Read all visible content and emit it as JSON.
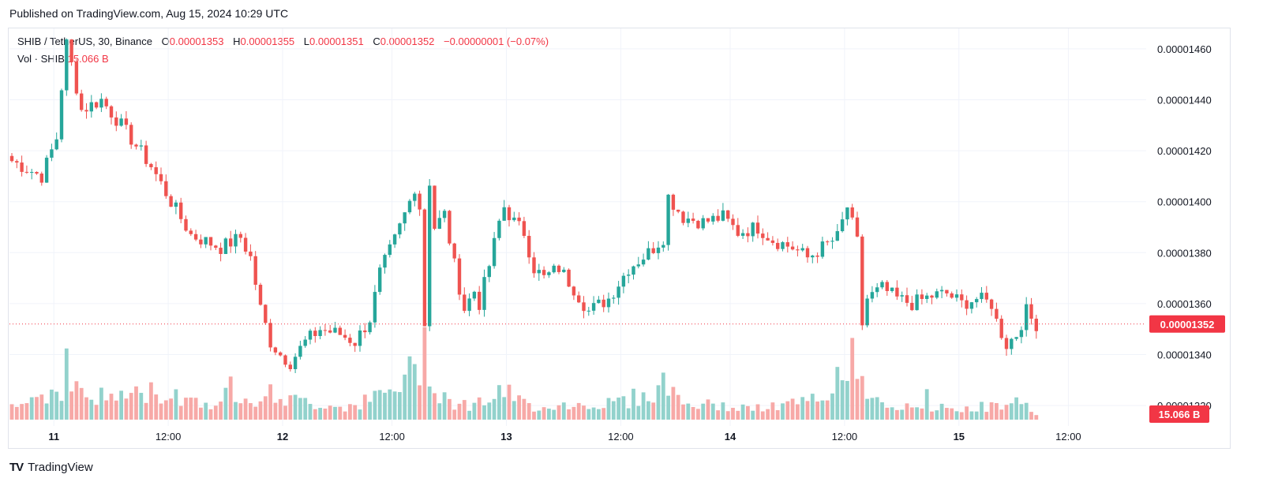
{
  "header": {
    "published": "Published on TradingView.com, Aug 15, 2024 10:29 UTC"
  },
  "legend": {
    "symbol": "SHIB / TetherUS, 30, Binance",
    "o_label": "O",
    "o_value": "0.00001353",
    "h_label": "H",
    "h_value": "0.00001355",
    "l_label": "L",
    "l_value": "0.00001351",
    "c_label": "C",
    "c_value": "0.00001352",
    "change": "−0.00000001 (−0.07%)",
    "vol_label": "Vol · SHIB",
    "vol_value": "15.066 B"
  },
  "footer": {
    "brand": "TradingView",
    "logo": "TV"
  },
  "colors": {
    "up": "#26a69a",
    "down": "#ef5350",
    "up_vol": "#92d2cc",
    "down_vol": "#f7a9a7",
    "grid": "#f0f3fa",
    "price_line": "#f23645"
  },
  "chart_data": {
    "type": "candlestick",
    "title": "SHIB / TetherUS, 30, Binance",
    "interval": "30",
    "grid": true,
    "y_axis": {
      "ticks": [
        "0.00001460",
        "0.00001440",
        "0.00001420",
        "0.00001400",
        "0.00001380",
        "0.00001360",
        "0.00001340",
        "0.00001320"
      ],
      "ylim": [
        1.312e-05,
        1.468e-05
      ],
      "last_price_label": "0.00001352",
      "last_price": 1.352e-05,
      "last_volume_label": "15.066 B"
    },
    "x_axis": {
      "ticks": [
        "11",
        "12:00",
        "12",
        "12:00",
        "13",
        "12:00",
        "14",
        "12:00",
        "15",
        "12:00"
      ]
    },
    "close_path": [
      [
        0,
        1416
      ],
      [
        6,
        1410
      ],
      [
        9,
        1425
      ],
      [
        10,
        1445
      ],
      [
        11,
        1462
      ],
      [
        12,
        1454
      ],
      [
        14,
        1436
      ],
      [
        18,
        1440
      ],
      [
        22,
        1430
      ],
      [
        28,
        1414
      ],
      [
        32,
        1400
      ],
      [
        36,
        1387
      ],
      [
        42,
        1382
      ],
      [
        46,
        1386
      ],
      [
        48,
        1378
      ],
      [
        50,
        1358
      ],
      [
        52,
        1345
      ],
      [
        54,
        1340
      ],
      [
        56,
        1337
      ],
      [
        59,
        1345
      ],
      [
        62,
        1350
      ],
      [
        66,
        1348
      ],
      [
        69,
        1345
      ],
      [
        72,
        1354
      ],
      [
        74,
        1372
      ],
      [
        77,
        1385
      ],
      [
        80,
        1400
      ],
      [
        81,
        1406
      ],
      [
        82,
        1398
      ],
      [
        83,
        1352
      ],
      [
        84,
        1408
      ],
      [
        85,
        1390
      ],
      [
        87,
        1395
      ],
      [
        89,
        1375
      ],
      [
        91,
        1358
      ],
      [
        93,
        1365
      ],
      [
        94,
        1360
      ],
      [
        96,
        1375
      ],
      [
        98,
        1392
      ],
      [
        99,
        1398
      ],
      [
        101,
        1392
      ],
      [
        103,
        1388
      ],
      [
        105,
        1374
      ],
      [
        107,
        1370
      ],
      [
        110,
        1374
      ],
      [
        113,
        1366
      ],
      [
        116,
        1357
      ],
      [
        120,
        1362
      ],
      [
        124,
        1374
      ],
      [
        128,
        1380
      ],
      [
        131,
        1386
      ],
      [
        132,
        1402
      ],
      [
        135,
        1394
      ],
      [
        139,
        1392
      ],
      [
        143,
        1394
      ],
      [
        146,
        1388
      ],
      [
        150,
        1390
      ],
      [
        153,
        1385
      ],
      [
        157,
        1382
      ],
      [
        160,
        1378
      ],
      [
        163,
        1382
      ],
      [
        166,
        1386
      ],
      [
        167,
        1392
      ],
      [
        168,
        1398
      ],
      [
        170,
        1384
      ],
      [
        171,
        1352
      ],
      [
        172,
        1362
      ],
      [
        175,
        1366
      ],
      [
        178,
        1362
      ],
      [
        181,
        1360
      ],
      [
        185,
        1363
      ],
      [
        188,
        1364
      ],
      [
        191,
        1360
      ],
      [
        194,
        1362
      ],
      [
        197,
        1360
      ],
      [
        198,
        1353
      ],
      [
        200,
        1344
      ],
      [
        202,
        1348
      ],
      [
        204,
        1357
      ],
      [
        205,
        1354
      ],
      [
        206,
        1352
      ]
    ],
    "volume_profile": [
      [
        0,
        0.05
      ],
      [
        10,
        0.12
      ],
      [
        11,
        0.2
      ],
      [
        12,
        0.13
      ],
      [
        16,
        0.08
      ],
      [
        28,
        0.1
      ],
      [
        36,
        0.08
      ],
      [
        42,
        0.05
      ],
      [
        44,
        0.13
      ],
      [
        46,
        0.1
      ],
      [
        50,
        0.08
      ],
      [
        53,
        0.1
      ],
      [
        56,
        0.07
      ],
      [
        66,
        0.05
      ],
      [
        70,
        0.06
      ],
      [
        76,
        0.1
      ],
      [
        82,
        0.2
      ],
      [
        83,
        0.28
      ],
      [
        84,
        0.22
      ],
      [
        85,
        0.12
      ],
      [
        90,
        0.05
      ],
      [
        95,
        0.07
      ],
      [
        99,
        0.1
      ],
      [
        104,
        0.05
      ],
      [
        120,
        0.06
      ],
      [
        130,
        0.1
      ],
      [
        131,
        0.15
      ],
      [
        135,
        0.06
      ],
      [
        150,
        0.04
      ],
      [
        165,
        0.08
      ],
      [
        167,
        0.22
      ],
      [
        168,
        0.25
      ],
      [
        170,
        0.18
      ],
      [
        174,
        0.08
      ],
      [
        178,
        0.05
      ],
      [
        183,
        0.03
      ],
      [
        184,
        0.15
      ],
      [
        185,
        0.04
      ],
      [
        200,
        0.05
      ],
      [
        201,
        0.07
      ],
      [
        206,
        0.03
      ]
    ],
    "volume_max": 0.28,
    "bar_count": 207
  }
}
